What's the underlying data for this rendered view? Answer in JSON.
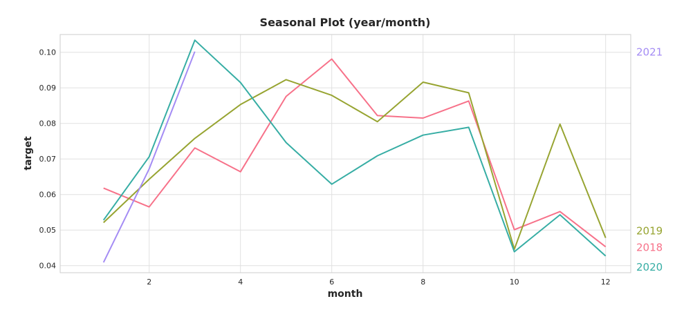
{
  "chart_data": {
    "type": "line",
    "title": "Seasonal Plot (year/month)",
    "xlabel": "month",
    "ylabel": "target",
    "xlim": [
      0.05,
      12.55
    ],
    "ylim": [
      0.038,
      0.105
    ],
    "xticks": [
      2,
      4,
      6,
      8,
      10,
      12
    ],
    "xtick_labels": [
      "2",
      "4",
      "6",
      "8",
      "10",
      "12"
    ],
    "yticks": [
      0.04,
      0.05,
      0.06,
      0.07,
      0.08,
      0.09,
      0.1
    ],
    "ytick_labels": [
      "0.04",
      "0.05",
      "0.06",
      "0.07",
      "0.08",
      "0.09",
      "0.10"
    ],
    "grid": true,
    "legend": "labels at line ends on right",
    "series": [
      {
        "name": "2018",
        "color": "#f77189",
        "x": [
          1,
          2,
          3,
          4,
          5,
          6,
          7,
          8,
          9,
          10,
          11,
          12
        ],
        "values": [
          0.0618,
          0.0565,
          0.0731,
          0.0664,
          0.0876,
          0.0981,
          0.0822,
          0.0815,
          0.0863,
          0.0501,
          0.0552,
          0.0453
        ]
      },
      {
        "name": "2019",
        "color": "#97a431",
        "x": [
          1,
          2,
          3,
          4,
          5,
          6,
          7,
          8,
          9,
          10,
          11,
          12
        ],
        "values": [
          0.0521,
          0.0643,
          0.0758,
          0.0853,
          0.0923,
          0.0879,
          0.0805,
          0.0916,
          0.0886,
          0.0446,
          0.0798,
          0.0478
        ]
      },
      {
        "name": "2020",
        "color": "#36ada4",
        "x": [
          1,
          2,
          3,
          4,
          5,
          6,
          7,
          8,
          9,
          10,
          11,
          12
        ],
        "values": [
          0.0528,
          0.0706,
          0.1034,
          0.0915,
          0.0746,
          0.0629,
          0.0709,
          0.0767,
          0.0789,
          0.0439,
          0.0543,
          0.0427
        ]
      },
      {
        "name": "2021",
        "color": "#a48cf4",
        "x": [
          1,
          2,
          3
        ],
        "values": [
          0.0409,
          0.0672,
          0.1002
        ]
      }
    ]
  }
}
